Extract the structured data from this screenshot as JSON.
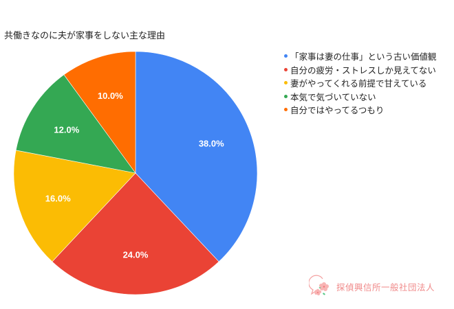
{
  "title": "共働きなのに夫が家事をしない主な理由",
  "chart_data": {
    "type": "pie",
    "title": "共働きなのに夫が家事をしない主な理由",
    "categories": [
      "「家事は妻の仕事」という古い価値観",
      "自分の疲労・ストレスしか見えてない",
      "妻がやってくれる前提で甘えている",
      "本気で気づいていない",
      "自分ではやってるつもり"
    ],
    "values": [
      38.0,
      24.0,
      16.0,
      12.0,
      10.0
    ],
    "labels": [
      "38.0%",
      "24.0%",
      "16.0%",
      "12.0%",
      "10.0%"
    ],
    "colors": [
      "#4285f4",
      "#ea4335",
      "#fbbc04",
      "#34a853",
      "#ff6d01"
    ],
    "legend_position": "right",
    "start_angle": "12 o'clock, clockwise"
  },
  "legend": [
    {
      "label": "「家事は妻の仕事」という古い価値観",
      "color": "#4285f4"
    },
    {
      "label": "自分の疲労・ストレスしか見えてない",
      "color": "#ea4335"
    },
    {
      "label": "妻がやってくれる前提で甘えている",
      "color": "#fbbc04"
    },
    {
      "label": "本気で気づいていない",
      "color": "#34a853"
    },
    {
      "label": "自分ではやってるつもり",
      "color": "#ff6d01"
    }
  ],
  "watermark": {
    "text": "探偵興信所一般社団法人",
    "icon": "sakura-speech-bubble-icon"
  }
}
